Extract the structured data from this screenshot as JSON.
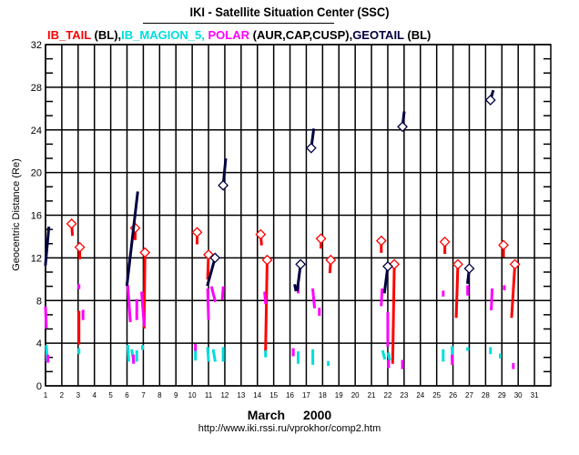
{
  "title": "IKI - Satellite Situation Center (SSC)",
  "legend": [
    {
      "text": "IB_TAIL",
      "color": "#ff0000"
    },
    {
      "text": " (BL),",
      "color": "#000000"
    },
    {
      "text": "IB_MAGION_5,",
      "color": "#00dddd"
    },
    {
      "text": " POLAR",
      "color": "#ff00ff"
    },
    {
      "text": " (AUR,CAP,CUSP),",
      "color": "#000000"
    },
    {
      "text": "GEOTAIL",
      "color": "#000040"
    },
    {
      "text": " (BL)",
      "color": "#000000"
    }
  ],
  "footer": {
    "month": "March",
    "year": "2000",
    "url": "http://www.iki.rssi.ru/vprokhor/comp2.htm"
  },
  "chart_data": {
    "type": "line",
    "title": "IKI - Satellite Situation Center (SSC)",
    "xlabel": "March 2000",
    "ylabel": "Geocentric Distance (Re)",
    "xlim": [
      1,
      32
    ],
    "ylim": [
      0,
      32
    ],
    "xticks": [
      1,
      2,
      3,
      4,
      5,
      6,
      7,
      8,
      9,
      10,
      11,
      12,
      13,
      14,
      15,
      16,
      17,
      18,
      19,
      20,
      21,
      22,
      23,
      24,
      25,
      26,
      27,
      28,
      29,
      30,
      31
    ],
    "yticks": [
      0,
      4,
      8,
      12,
      16,
      20,
      24,
      28,
      32
    ],
    "grid": true,
    "series": [
      {
        "name": "IB_TAIL (BL)",
        "color": "#ff0000",
        "width": 3,
        "segments": [
          [
            2.6,
            15.2,
            2.65,
            14.2
          ],
          [
            3.1,
            13.0,
            3.1,
            12.0
          ],
          [
            3.05,
            6.9,
            3.05,
            4.0
          ],
          [
            6.5,
            14.8,
            6.5,
            13.8
          ],
          [
            7.1,
            12.5,
            7.05,
            5.5
          ],
          [
            10.3,
            14.4,
            10.3,
            13.4
          ],
          [
            11.0,
            12.3,
            10.95,
            10.1
          ],
          [
            14.2,
            14.2,
            14.25,
            13.3
          ],
          [
            14.6,
            11.8,
            14.5,
            3.3
          ],
          [
            17.9,
            13.8,
            17.9,
            13.0
          ],
          [
            18.5,
            11.8,
            18.45,
            10.7
          ],
          [
            21.6,
            13.6,
            21.6,
            12.6
          ],
          [
            22.4,
            11.4,
            22.3,
            2.2
          ],
          [
            25.5,
            13.5,
            25.5,
            12.5
          ],
          [
            26.3,
            11.4,
            26.2,
            6.5
          ],
          [
            29.1,
            13.2,
            29.1,
            12.2
          ],
          [
            29.8,
            11.4,
            29.6,
            6.5
          ]
        ],
        "markers": [
          [
            2.6,
            15.2
          ],
          [
            3.1,
            13.0
          ],
          [
            6.5,
            14.8
          ],
          [
            7.1,
            12.5
          ],
          [
            10.3,
            14.4
          ],
          [
            11.0,
            12.3
          ],
          [
            14.2,
            14.2
          ],
          [
            14.6,
            11.8
          ],
          [
            17.9,
            13.8
          ],
          [
            18.5,
            11.8
          ],
          [
            21.6,
            13.6
          ],
          [
            22.4,
            11.4
          ],
          [
            25.5,
            13.5
          ],
          [
            26.3,
            11.4
          ],
          [
            29.1,
            13.2
          ],
          [
            29.8,
            11.4
          ]
        ]
      },
      {
        "name": "IB_MAGION_5",
        "color": "#00dddd",
        "width": 3,
        "segments": [
          [
            1.05,
            3.7,
            1.1,
            2.4
          ],
          [
            3.05,
            3.4,
            3.05,
            3.1
          ],
          [
            6.05,
            3.7,
            6.1,
            2.4
          ],
          [
            6.3,
            3.3,
            6.4,
            2.3
          ],
          [
            6.6,
            3.2,
            6.6,
            2.4
          ],
          [
            6.95,
            3.7,
            6.95,
            3.5
          ],
          [
            10.2,
            3.4,
            10.2,
            2.5
          ],
          [
            10.95,
            3.5,
            11.0,
            2.4
          ],
          [
            11.3,
            3.3,
            11.4,
            2.4
          ],
          [
            11.9,
            3.5,
            11.9,
            2.4
          ],
          [
            14.5,
            3.2,
            14.5,
            2.8
          ],
          [
            16.5,
            3.1,
            16.5,
            2.2
          ],
          [
            17.4,
            3.3,
            17.4,
            2.1
          ],
          [
            18.35,
            2.2,
            18.35,
            2.0
          ],
          [
            21.7,
            3.2,
            21.8,
            2.6
          ],
          [
            22.05,
            3.0,
            22.1,
            2.5
          ],
          [
            25.4,
            3.3,
            25.4,
            2.4
          ],
          [
            25.95,
            3.6,
            25.95,
            2.5
          ],
          [
            26.9,
            3.5,
            26.9,
            3.4
          ],
          [
            28.3,
            3.5,
            28.3,
            3.1
          ],
          [
            28.9,
            2.9,
            28.9,
            2.7
          ]
        ]
      },
      {
        "name": "POLAR (AUR,CAP,CUSP)",
        "color": "#ff00ff",
        "width": 3,
        "segments": [
          [
            1.0,
            7.3,
            1.05,
            5.5
          ],
          [
            1.15,
            2.8,
            1.15,
            2.3
          ],
          [
            3.05,
            9.4,
            3.05,
            9.2
          ],
          [
            3.3,
            7.0,
            3.3,
            6.3
          ],
          [
            6.05,
            9.3,
            6.2,
            6.1
          ],
          [
            6.6,
            8.0,
            6.6,
            6.3
          ],
          [
            6.9,
            8.7,
            7.05,
            5.7
          ],
          [
            6.4,
            2.8,
            6.4,
            2.2
          ],
          [
            10.2,
            3.8,
            10.2,
            3.4
          ],
          [
            10.95,
            9.0,
            11.0,
            6.3
          ],
          [
            11.2,
            9.2,
            11.4,
            8.0
          ],
          [
            11.9,
            9.2,
            11.85,
            8.2
          ],
          [
            14.45,
            8.7,
            14.5,
            7.8
          ],
          [
            16.5,
            9.3,
            16.5,
            8.8
          ],
          [
            16.2,
            3.4,
            16.2,
            2.9
          ],
          [
            17.4,
            9.0,
            17.5,
            7.4
          ],
          [
            17.8,
            7.2,
            17.8,
            6.7
          ],
          [
            21.65,
            9.0,
            21.6,
            7.6
          ],
          [
            22.0,
            6.8,
            22.0,
            3.8
          ],
          [
            22.05,
            2.3,
            22.05,
            1.8
          ],
          [
            22.9,
            2.3,
            22.9,
            1.7
          ],
          [
            25.4,
            8.8,
            25.4,
            8.5
          ],
          [
            26.9,
            9.3,
            26.9,
            8.6
          ],
          [
            25.95,
            2.8,
            25.95,
            2.1
          ],
          [
            28.4,
            9.0,
            28.35,
            7.2
          ],
          [
            29.15,
            9.3,
            29.15,
            9.1
          ],
          [
            29.7,
            2.0,
            29.7,
            1.7
          ]
        ]
      },
      {
        "name": "GEOTAIL (BL)",
        "color": "#000040",
        "width": 3,
        "segments": [
          [
            1.0,
            11.4,
            1.2,
            14.8
          ],
          [
            6.0,
            9.5,
            6.65,
            18.1
          ],
          [
            10.95,
            9.5,
            11.4,
            12.0
          ],
          [
            11.9,
            18.8,
            12.05,
            21.2
          ],
          [
            16.3,
            9.4,
            16.35,
            9.0
          ],
          [
            16.45,
            9.0,
            16.65,
            11.4
          ],
          [
            17.3,
            22.3,
            17.45,
            24.0
          ],
          [
            21.8,
            8.8,
            22.0,
            11.2
          ],
          [
            22.9,
            24.3,
            23.0,
            25.6
          ],
          [
            26.9,
            9.7,
            27.0,
            11.0
          ],
          [
            28.3,
            26.8,
            28.45,
            27.6
          ]
        ],
        "markers": [
          [
            11.4,
            12.0
          ],
          [
            11.9,
            18.8
          ],
          [
            16.65,
            11.4
          ],
          [
            17.3,
            22.3
          ],
          [
            22.0,
            11.2
          ],
          [
            22.9,
            24.3
          ],
          [
            27.0,
            11.0
          ],
          [
            28.3,
            26.8
          ]
        ]
      }
    ]
  }
}
